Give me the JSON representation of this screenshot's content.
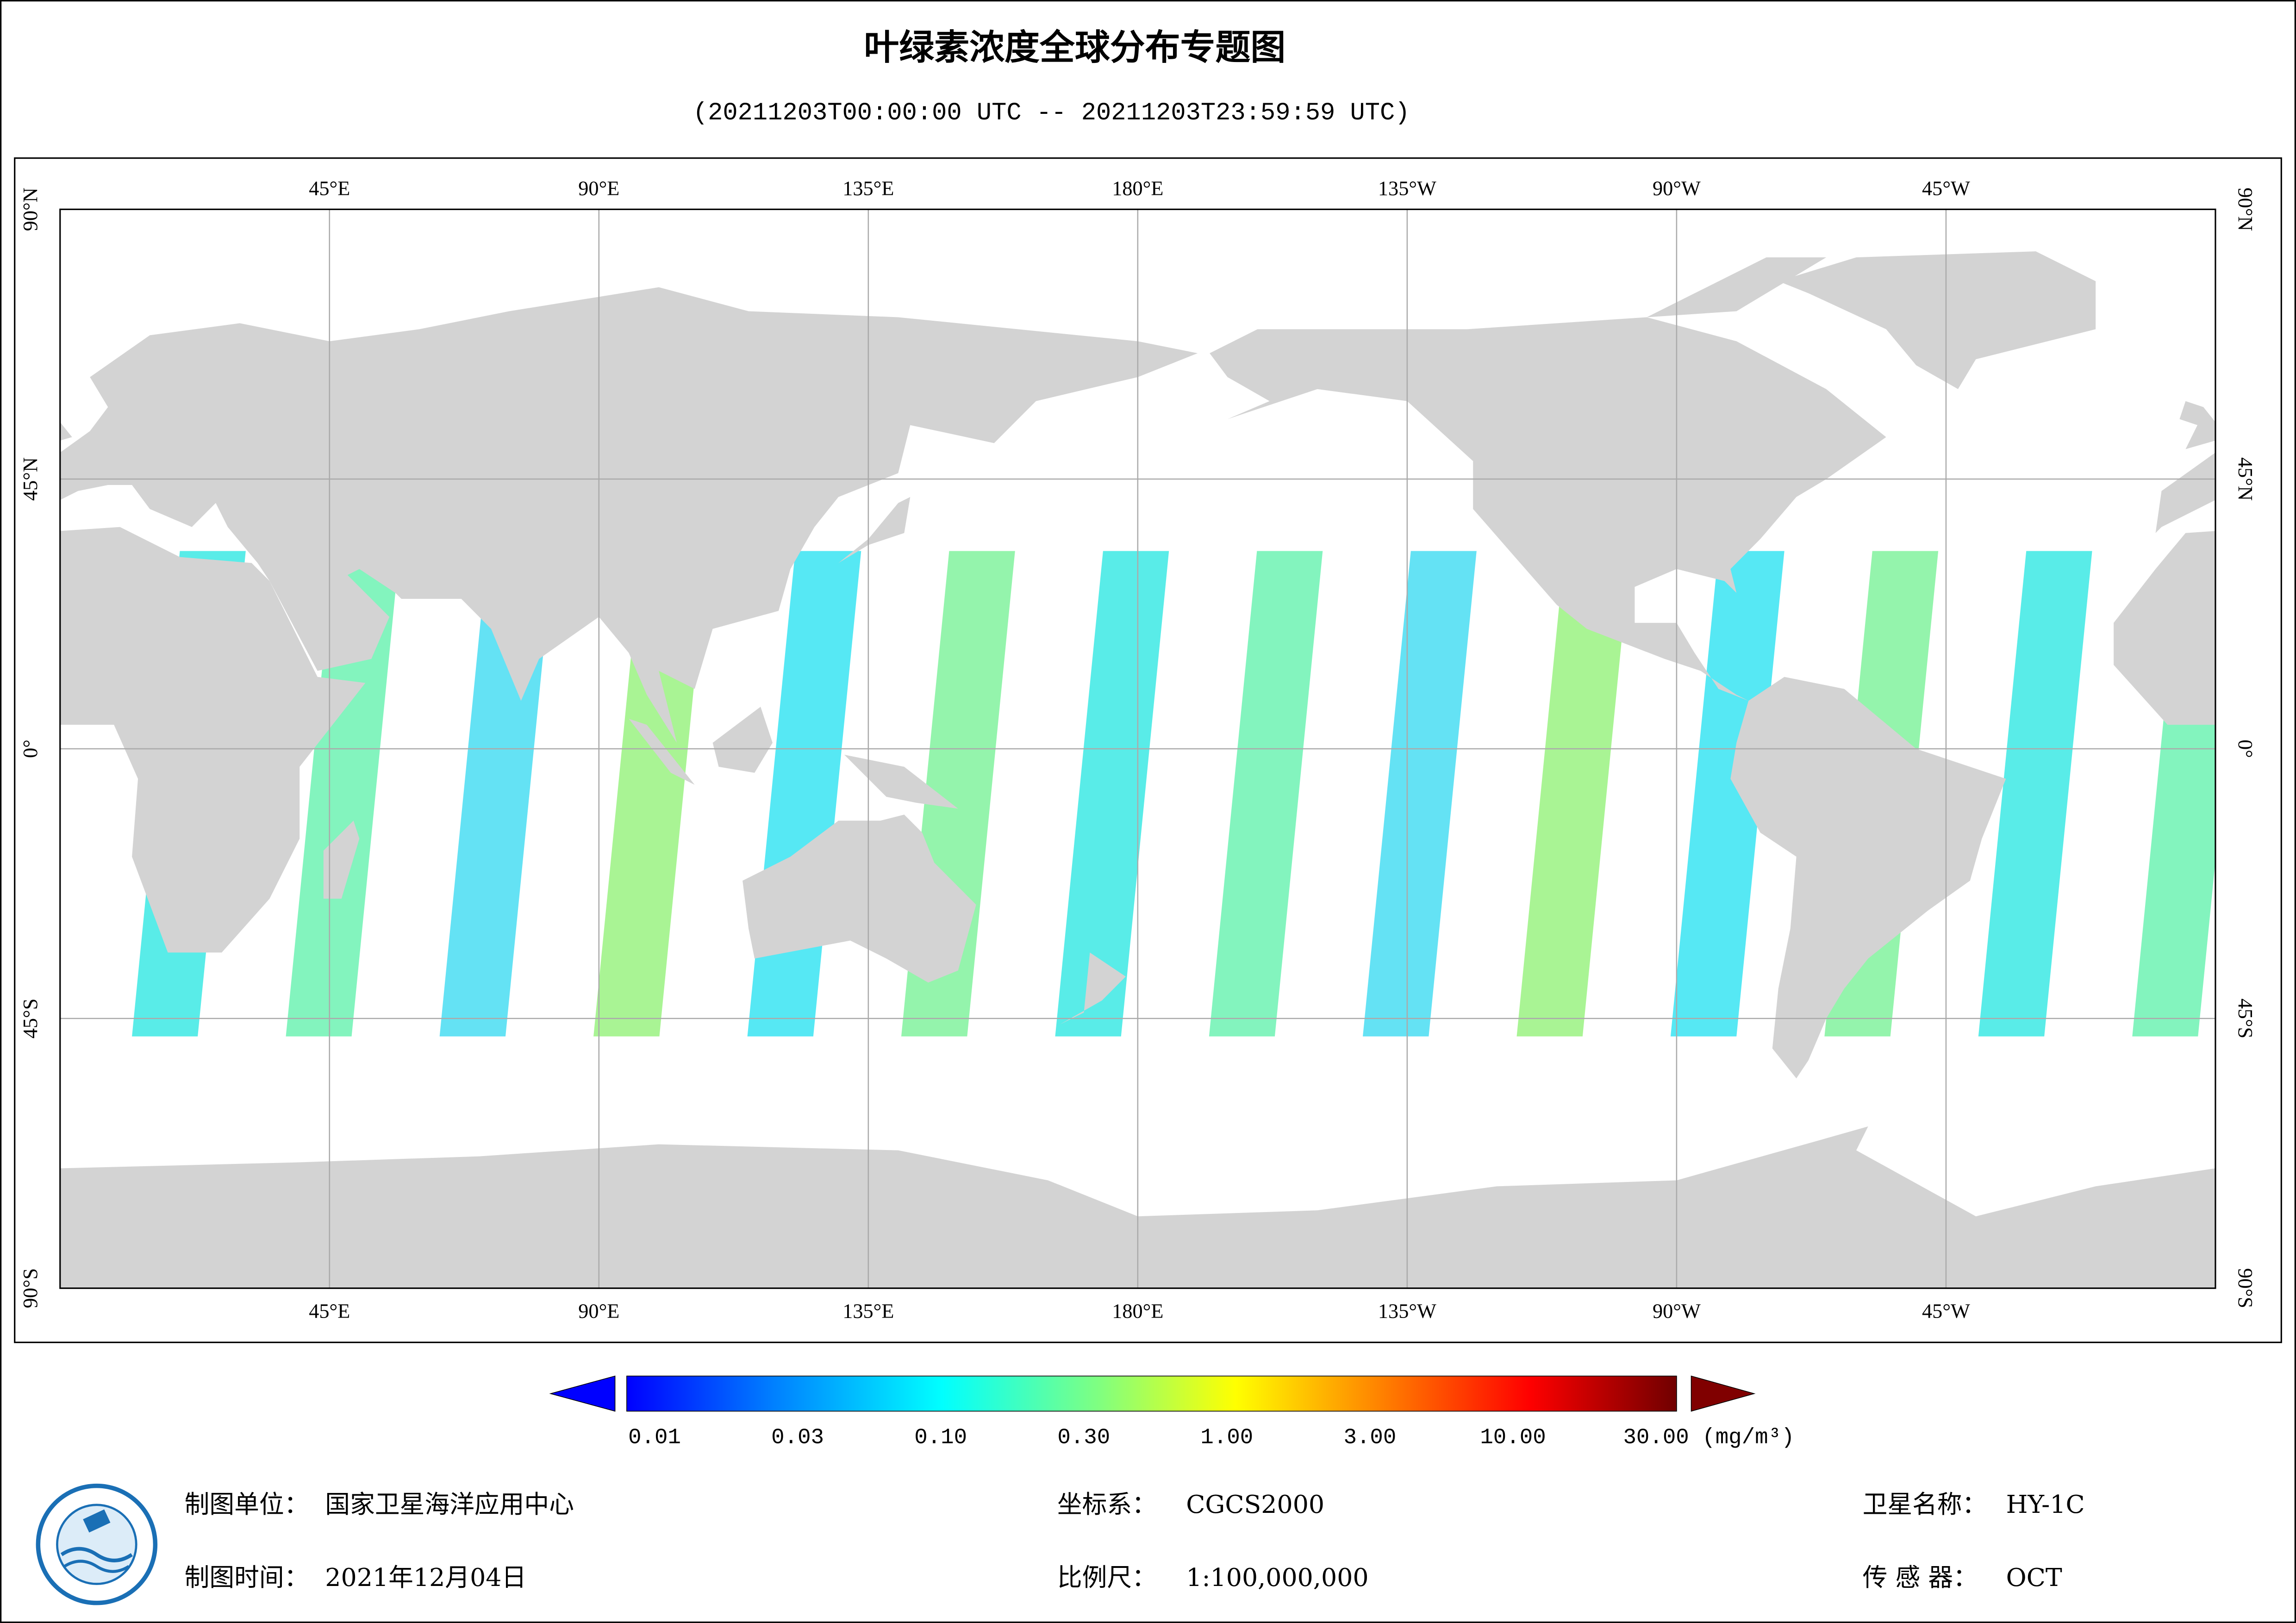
{
  "title": "叶绿素浓度全球分布专题图",
  "subtitle": "(20211203T00:00:00 UTC -- 20211203T23:59:59 UTC)",
  "map": {
    "lon_labels": [
      "45°E",
      "90°E",
      "135°E",
      "180°E",
      "135°W",
      "90°W",
      "45°W"
    ],
    "lat_labels": [
      "90°N",
      "45°N",
      "0°",
      "45°S",
      "90°S"
    ]
  },
  "colorbar": {
    "ticks": [
      "0.01",
      "0.03",
      "0.10",
      "0.30",
      "1.00",
      "3.00",
      "10.00",
      "30.00"
    ],
    "unit": "(mg/m³)"
  },
  "footer": {
    "unit": {
      "label": "制图单位：",
      "value": "国家卫星海洋应用中心"
    },
    "date": {
      "label": "制图时间：",
      "value": "2021年12月04日"
    },
    "crs": {
      "label": "坐标系：",
      "value": "CGCS2000"
    },
    "scale": {
      "label": "比例尺：",
      "value": "1:100,000,000"
    },
    "satellite": {
      "label": "卫星名称：",
      "value": "HY-1C"
    },
    "sensor": {
      "label": "传 感 器：",
      "value": "OCT"
    }
  }
}
